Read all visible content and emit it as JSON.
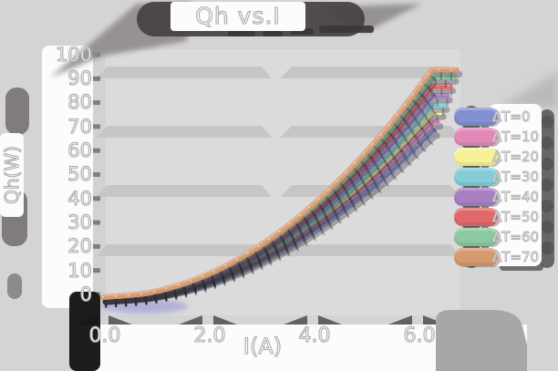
{
  "colors": {
    "background": "#d5d4d4",
    "panel": "#dcdbdb",
    "grid_band": "#c7c6c6",
    "shadow_blob": "#474041",
    "wing_gray": "#8a8786",
    "label_bg": "#fcfcfc",
    "corner_blob": "#141414",
    "bottom_right_blob": "#a7a7a7",
    "legend_shadow": "#545454"
  },
  "chart_data": {
    "type": "line",
    "title": "Qh vs.I",
    "xlabel": "I(A)",
    "ylabel": "Qh(W)",
    "xlim": [
      0,
      7
    ],
    "ylim": [
      0,
      100
    ],
    "x_ticks": [
      "0.0",
      "2.0",
      "4.0",
      "6.0"
    ],
    "y_ticks": [
      "100",
      "90",
      "80",
      "70",
      "60",
      "50",
      "40",
      "30",
      "20",
      "10",
      "0"
    ],
    "grid": "horizontal-bands",
    "legend_position": "right",
    "x": [
      0,
      0.9,
      1.8,
      2.7,
      3.6,
      4.5,
      5.4,
      6.3
    ],
    "series": [
      {
        "label": "ΔT=0",
        "color": "#8290cf",
        "color_light": "#9fabdd",
        "values": [
          0,
          1.4,
          5.7,
          12.9,
          22.9,
          35.7,
          51.4,
          70
        ]
      },
      {
        "label": "ΔT=10",
        "color": "#e389b8",
        "color_light": "#eda6ca",
        "values": [
          0,
          1.5,
          6.0,
          13.6,
          24.2,
          37.8,
          54.4,
          74
        ]
      },
      {
        "label": "ΔT=20",
        "color": "#f6f298",
        "color_light": "#fbf9bc",
        "values": [
          0,
          1.6,
          6.4,
          14.3,
          25.5,
          39.8,
          57.3,
          78
        ]
      },
      {
        "label": "ΔT=30",
        "color": "#83ccd8",
        "color_light": "#a2dde6",
        "values": [
          0,
          1.7,
          6.6,
          14.9,
          26.4,
          41.3,
          59.5,
          81
        ]
      },
      {
        "label": "ΔT=40",
        "color": "#a97fc4",
        "color_light": "#bf9cd6",
        "values": [
          0,
          1.7,
          6.9,
          15.6,
          27.8,
          43.4,
          62.4,
          85
        ]
      },
      {
        "label": "ΔT=50",
        "color": "#e06a6a",
        "color_light": "#ec9090",
        "values": [
          0,
          1.8,
          7.3,
          16.3,
          29.1,
          45.4,
          65.4,
          89
        ]
      },
      {
        "label": "ΔT=60",
        "color": "#8cc9a2",
        "color_light": "#aadabc",
        "values": [
          0,
          1.9,
          7.6,
          17.1,
          30.4,
          47.4,
          68.3,
          93
        ]
      },
      {
        "label": "ΔT=70",
        "color": "#d69a70",
        "color_light": "#e4b492",
        "values": [
          0,
          2.0,
          7.8,
          17.6,
          31.3,
          49.0,
          70.5,
          96
        ]
      }
    ]
  }
}
